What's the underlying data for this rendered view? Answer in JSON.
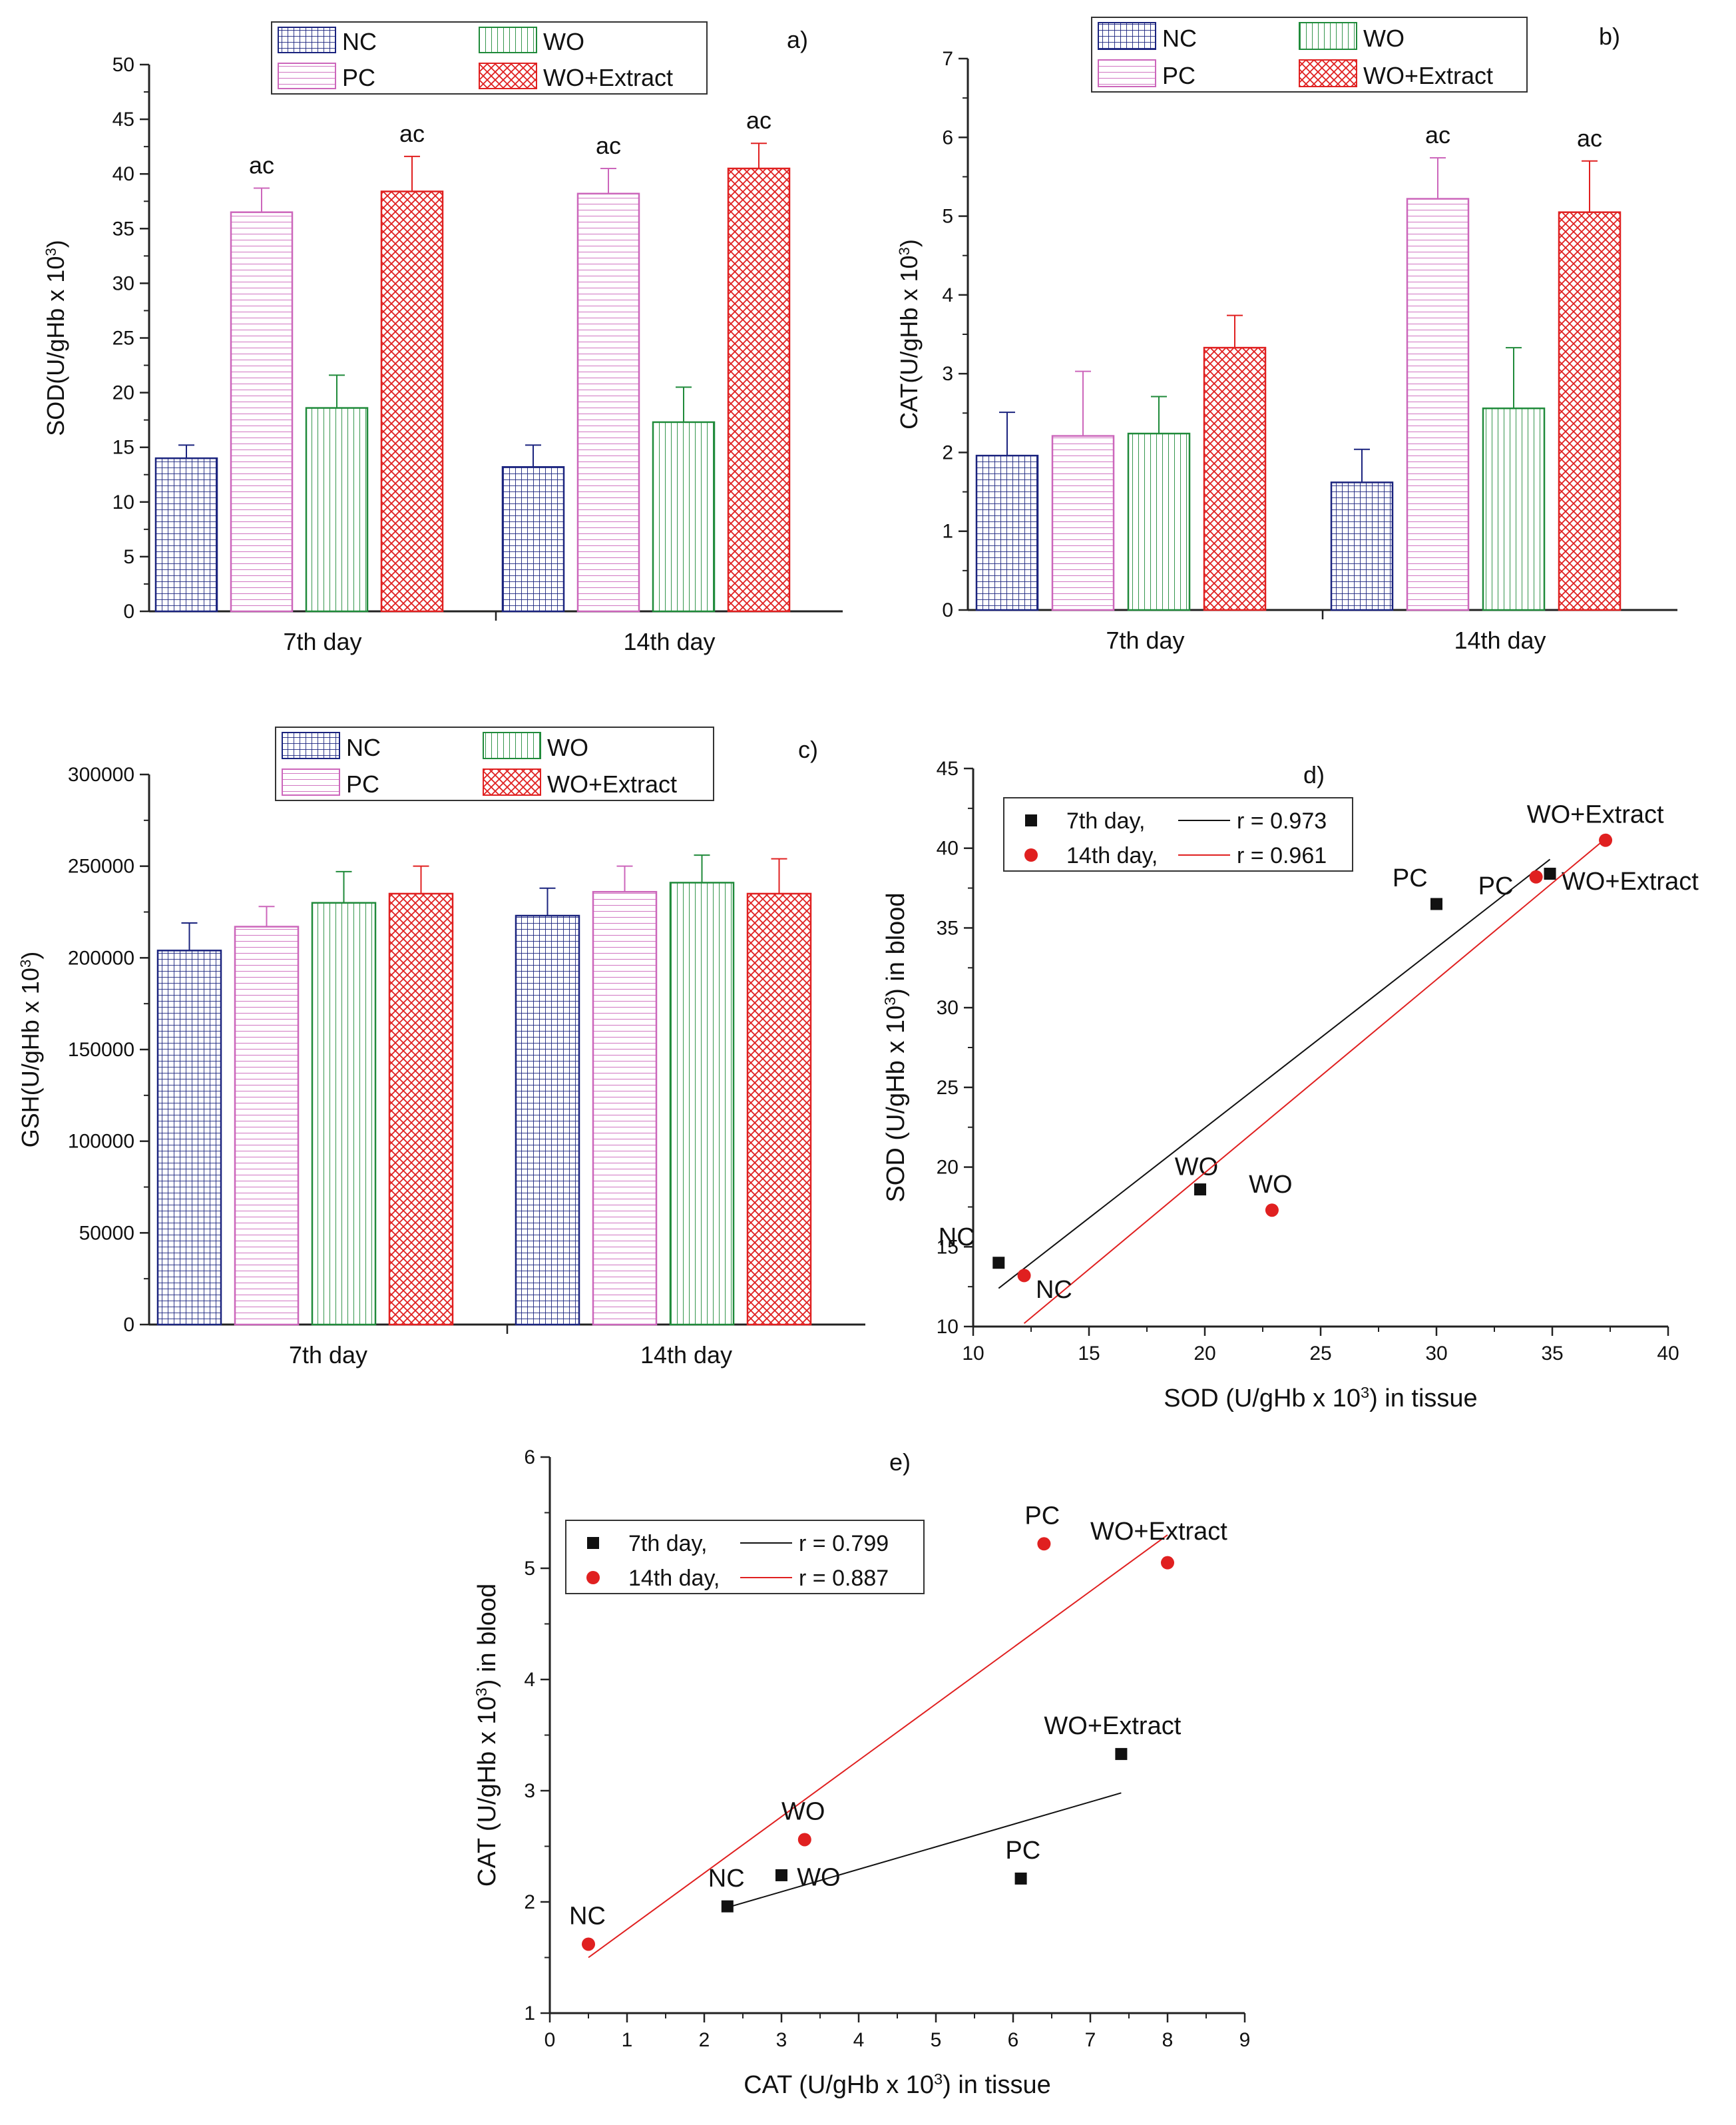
{
  "figure": {
    "colors": {
      "NC": "#1a237e",
      "PC": "#cc66bb",
      "WO": "#1f8a3a",
      "WOE": "#e02020",
      "day7": "#111111",
      "day14": "#e02020"
    }
  },
  "chart_data": [
    {
      "id": "a",
      "panel_label": "a)",
      "type": "bar",
      "ylabel": "SOD(U/gHb x 10",
      "ylabel_sup": "3",
      "ylabel_end": ")",
      "categories": [
        "7th day",
        "14th day"
      ],
      "ylim": [
        0,
        50
      ],
      "yticks": [
        "0",
        "5",
        "10",
        "15",
        "20",
        "25",
        "30",
        "35",
        "40",
        "45",
        "50"
      ],
      "legend": [
        "NC",
        "WO",
        "PC",
        "WO+Extract"
      ],
      "series": [
        {
          "name": "NC",
          "key": "NC",
          "values": [
            14.0,
            13.2
          ],
          "errors": [
            1.2,
            2.0
          ],
          "annotations": [
            "",
            ""
          ]
        },
        {
          "name": "PC",
          "key": "PC",
          "values": [
            36.5,
            38.2
          ],
          "errors": [
            2.2,
            2.3
          ],
          "annotations": [
            "ac",
            "ac"
          ]
        },
        {
          "name": "WO",
          "key": "WO",
          "values": [
            18.6,
            17.3
          ],
          "errors": [
            3.0,
            3.2
          ],
          "annotations": [
            "",
            ""
          ]
        },
        {
          "name": "WO+Extract",
          "key": "WOE",
          "values": [
            38.4,
            40.5
          ],
          "errors": [
            3.2,
            2.3
          ],
          "annotations": [
            "ac",
            "ac"
          ]
        }
      ]
    },
    {
      "id": "b",
      "panel_label": "b)",
      "type": "bar",
      "ylabel": "CAT(U/gHb x 10",
      "ylabel_sup": "3",
      "ylabel_end": ")",
      "categories": [
        "7th day",
        "14th day"
      ],
      "ylim": [
        0,
        7
      ],
      "yticks": [
        "0",
        "1",
        "2",
        "3",
        "4",
        "5",
        "6",
        "7"
      ],
      "legend": [
        "NC",
        "WO",
        "PC",
        "WO+Extract"
      ],
      "series": [
        {
          "name": "NC",
          "key": "NC",
          "values": [
            1.96,
            1.62
          ],
          "errors": [
            0.55,
            0.42
          ],
          "annotations": [
            "",
            ""
          ]
        },
        {
          "name": "PC",
          "key": "PC",
          "values": [
            2.21,
            5.22
          ],
          "errors": [
            0.82,
            0.52
          ],
          "annotations": [
            "",
            "ac"
          ]
        },
        {
          "name": "WO",
          "key": "WO",
          "values": [
            2.24,
            2.56
          ],
          "errors": [
            0.47,
            0.77
          ],
          "annotations": [
            "",
            ""
          ]
        },
        {
          "name": "WO+Extract",
          "key": "WOE",
          "values": [
            3.33,
            5.05
          ],
          "errors": [
            0.41,
            0.65
          ],
          "annotations": [
            "",
            "ac"
          ]
        }
      ]
    },
    {
      "id": "c",
      "panel_label": "c)",
      "type": "bar",
      "ylabel": "GSH(U/gHb x 10",
      "ylabel_sup": "3",
      "ylabel_end": ")",
      "categories": [
        "7th day",
        "14th day"
      ],
      "ylim": [
        0,
        300000
      ],
      "yticks": [
        "0",
        "50000",
        "100000",
        "150000",
        "200000",
        "250000",
        "300000"
      ],
      "legend": [
        "NC",
        "WO",
        "PC",
        "WO+Extract"
      ],
      "series": [
        {
          "name": "NC",
          "key": "NC",
          "values": [
            204000,
            223000
          ],
          "errors": [
            15000,
            15000
          ],
          "annotations": [
            "",
            ""
          ]
        },
        {
          "name": "PC",
          "key": "PC",
          "values": [
            217000,
            236000
          ],
          "errors": [
            11000,
            14000
          ],
          "annotations": [
            "",
            ""
          ]
        },
        {
          "name": "WO",
          "key": "WO",
          "values": [
            230000,
            241000
          ],
          "errors": [
            17000,
            15000
          ],
          "annotations": [
            "",
            ""
          ]
        },
        {
          "name": "WO+Extract",
          "key": "WOE",
          "values": [
            235000,
            235000
          ],
          "errors": [
            15000,
            19000
          ],
          "annotations": [
            "",
            ""
          ]
        }
      ]
    },
    {
      "id": "d",
      "panel_label": "d)",
      "type": "scatter",
      "xlabel": "SOD (U/gHb x 10",
      "xlabel_sup": "3",
      "xlabel_end": ") in tissue",
      "ylabel": "SOD (U/gHb x 10",
      "ylabel_sup": "3",
      "ylabel_end": ") in blood",
      "xlim": [
        10,
        40
      ],
      "ylim": [
        10,
        45
      ],
      "xticks": [
        "10",
        "15",
        "20",
        "25",
        "30",
        "35",
        "40"
      ],
      "yticks": [
        "10",
        "15",
        "20",
        "25",
        "30",
        "35",
        "40",
        "45"
      ],
      "series": [
        {
          "name": "7th day,",
          "r_label": "r = 0.973",
          "key": "day7",
          "marker": "square",
          "points": [
            {
              "x": 11.1,
              "y": 14.0,
              "label": "NC",
              "lx": -2.6,
              "ly": 1.6
            },
            {
              "x": 30.0,
              "y": 36.5,
              "label": "PC",
              "lx": -1.9,
              "ly": 1.6
            },
            {
              "x": 19.8,
              "y": 18.6,
              "label": "WO",
              "lx": -1.1,
              "ly": 1.4
            },
            {
              "x": 34.9,
              "y": 38.4,
              "label": "WO+Extract",
              "lx": 0.5,
              "ly": -0.5
            }
          ],
          "fit": [
            [
              11.1,
              12.4
            ],
            [
              34.9,
              39.3
            ]
          ]
        },
        {
          "name": "14th day,",
          "r_label": "r = 0.961",
          "key": "day14",
          "marker": "circle",
          "points": [
            {
              "x": 12.2,
              "y": 13.2,
              "label": "NC",
              "lx": 0.5,
              "ly": -0.9
            },
            {
              "x": 34.3,
              "y": 38.2,
              "label": "PC",
              "lx": -2.5,
              "ly": -0.6
            },
            {
              "x": 22.9,
              "y": 17.3,
              "label": "WO",
              "lx": -1.0,
              "ly": 1.6
            },
            {
              "x": 37.3,
              "y": 40.5,
              "label": "WO+Extract",
              "lx": -3.4,
              "ly": 1.6
            }
          ],
          "fit": [
            [
              12.2,
              10.2
            ],
            [
              37.3,
              40.6
            ]
          ]
        }
      ]
    },
    {
      "id": "e",
      "panel_label": "e)",
      "type": "scatter",
      "xlabel": "CAT (U/gHb x 10",
      "xlabel_sup": "3",
      "xlabel_end": ") in tissue",
      "ylabel": "CAT (U/gHb x 10",
      "ylabel_sup": "3",
      "ylabel_end": ") in blood",
      "xlim": [
        0,
        9
      ],
      "ylim": [
        1,
        6
      ],
      "xticks": [
        "0",
        "1",
        "2",
        "3",
        "4",
        "5",
        "6",
        "7",
        "8",
        "9"
      ],
      "yticks": [
        "1",
        "2",
        "3",
        "4",
        "5",
        "6"
      ],
      "series": [
        {
          "name": "7th day,",
          "r_label": "r = 0.799",
          "key": "day7",
          "marker": "square",
          "points": [
            {
              "x": 2.3,
              "y": 1.96,
              "label": "NC",
              "lx": -0.25,
              "ly": 0.25
            },
            {
              "x": 6.1,
              "y": 2.21,
              "label": "PC",
              "lx": -0.2,
              "ly": 0.25
            },
            {
              "x": 3.0,
              "y": 2.24,
              "label": "WO",
              "lx": 0.2,
              "ly": -0.02
            },
            {
              "x": 7.4,
              "y": 3.33,
              "label": "WO+Extract",
              "lx": -1.0,
              "ly": 0.25
            }
          ],
          "fit": [
            [
              2.3,
              1.95
            ],
            [
              7.4,
              2.98
            ]
          ]
        },
        {
          "name": "14th day,",
          "r_label": "r = 0.887",
          "key": "day14",
          "marker": "circle",
          "points": [
            {
              "x": 0.5,
              "y": 1.62,
              "label": "NC",
              "lx": -0.25,
              "ly": 0.25
            },
            {
              "x": 6.4,
              "y": 5.22,
              "label": "PC",
              "lx": -0.25,
              "ly": 0.25
            },
            {
              "x": 3.3,
              "y": 2.56,
              "label": "WO",
              "lx": -0.3,
              "ly": 0.25
            },
            {
              "x": 8.0,
              "y": 5.05,
              "label": "WO+Extract",
              "lx": -1.0,
              "ly": 0.28
            }
          ],
          "fit": [
            [
              0.5,
              1.5
            ],
            [
              8.0,
              5.3
            ]
          ]
        }
      ]
    }
  ]
}
